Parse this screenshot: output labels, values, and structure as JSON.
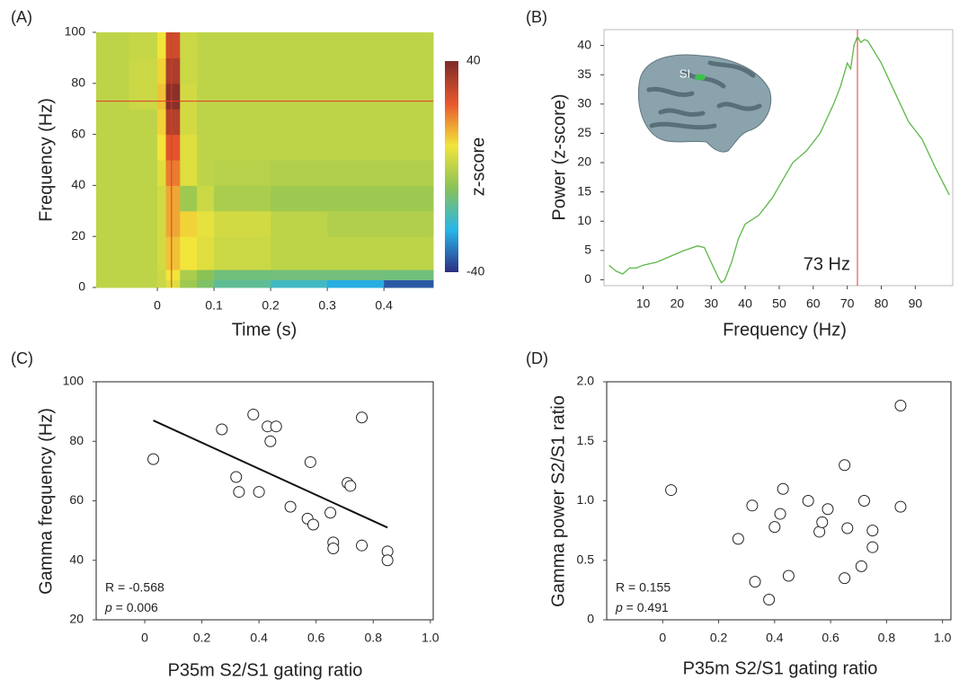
{
  "chart_data": [
    {
      "type": "heatmap",
      "panel_label": "(A)",
      "x_label": "Time (s)",
      "y_label": "Frequency (Hz)",
      "xlim": [
        -0.108,
        0.487
      ],
      "ylim": [
        0,
        100
      ],
      "xticks": [
        0,
        0.1,
        0.2,
        0.3,
        0.4
      ],
      "yticks": [
        0,
        20,
        40,
        60,
        80,
        100
      ],
      "x_edges": [
        -0.108,
        -0.05,
        0.0,
        0.015,
        0.04,
        0.07,
        0.1,
        0.2,
        0.3,
        0.4,
        0.487
      ],
      "y_edges": [
        0,
        3,
        7,
        20,
        30,
        40,
        50,
        60,
        70,
        80,
        90,
        100
      ],
      "z": [
        [
          0,
          0,
          2,
          5,
          -5,
          -10,
          -15,
          -20,
          -25,
          -35
        ],
        [
          0,
          0,
          2,
          8,
          -3,
          -8,
          -12,
          -12,
          -12,
          -12
        ],
        [
          0,
          0,
          3,
          12,
          8,
          5,
          2,
          0,
          0,
          0
        ],
        [
          0,
          0,
          3,
          15,
          10,
          6,
          3,
          0,
          -2,
          -2
        ],
        [
          0,
          0,
          3,
          15,
          -5,
          2,
          -3,
          -5,
          -5,
          -5
        ],
        [
          0,
          0,
          5,
          20,
          5,
          0,
          -1,
          -2,
          -2,
          -2
        ],
        [
          0,
          0,
          8,
          25,
          5,
          0,
          0,
          0,
          0,
          0
        ],
        [
          0,
          0,
          10,
          32,
          3,
          0,
          0,
          0,
          0,
          0
        ],
        [
          0,
          2,
          12,
          38,
          3,
          0,
          0,
          0,
          0,
          0
        ],
        [
          0,
          2,
          10,
          33,
          2,
          0,
          0,
          0,
          0,
          0
        ],
        [
          0,
          1,
          8,
          28,
          2,
          0,
          0,
          0,
          0,
          0
        ]
      ],
      "crosshair": {
        "x": 0.025,
        "y": 73,
        "color": "#e0392b"
      },
      "colormap": [
        "#2c2e83",
        "#27b6e9",
        "#8ac256",
        "#f2e53a",
        "#e8572c",
        "#7d2a2a"
      ],
      "colorbar": {
        "label": "z-score",
        "lim": [
          -40,
          40
        ],
        "ticks": [
          -40,
          40
        ]
      }
    },
    {
      "type": "line",
      "panel_label": "(B)",
      "x_label": "Frequency (Hz)",
      "y_label": "Power (z-score)",
      "xlim": [
        -1.5,
        101
      ],
      "ylim": [
        -1,
        42.7
      ],
      "xticks": [
        10,
        20,
        30,
        40,
        50,
        60,
        70,
        80,
        90
      ],
      "yticks": [
        0,
        5,
        10,
        15,
        20,
        25,
        30,
        35,
        40
      ],
      "x": [
        0,
        2,
        4,
        6,
        8,
        10,
        14,
        18,
        22,
        26,
        28,
        30,
        32,
        33,
        34,
        36,
        38,
        40,
        44,
        48,
        50,
        54,
        58,
        62,
        66,
        68,
        70,
        71,
        72,
        73,
        74,
        75,
        76,
        80,
        84,
        88,
        92,
        96,
        100
      ],
      "values": [
        2.5,
        1.5,
        1,
        2,
        2,
        2.5,
        3,
        4,
        5,
        5.8,
        5.5,
        3,
        0.5,
        -0.5,
        0,
        3,
        7,
        9.5,
        11,
        14,
        16,
        20,
        22,
        25,
        30,
        33,
        37,
        36,
        40,
        41.5,
        40.5,
        41,
        40.8,
        37,
        32,
        27,
        24,
        19,
        14.5
      ],
      "color": "#5cb848",
      "annotation": {
        "value": 73,
        "label": "73 Hz",
        "color": "#e0392b"
      },
      "inset_label": "SI"
    },
    {
      "type": "scatter",
      "panel_label": "(C)",
      "x_label": "P35m S2/S1 gating ratio",
      "y_label": "Gamma frequency (Hz)",
      "xlim": [
        -0.17,
        1.01
      ],
      "ylim": [
        20,
        100
      ],
      "xticks": [
        0,
        0.2,
        0.4,
        0.6,
        0.8,
        {
          "value": 1,
          "label": "1.0"
        }
      ],
      "yticks": [
        20,
        40,
        60,
        80,
        100
      ],
      "x": [
        0.03,
        0.27,
        0.32,
        0.33,
        0.38,
        0.4,
        0.43,
        0.44,
        0.46,
        0.51,
        0.57,
        0.58,
        0.59,
        0.65,
        0.66,
        0.66,
        0.71,
        0.72,
        0.76,
        0.76,
        0.85,
        0.85
      ],
      "y": [
        74,
        84,
        68,
        63,
        89,
        63,
        85,
        80,
        85,
        58,
        54,
        73,
        52,
        56,
        46,
        44,
        66,
        65,
        88,
        45,
        43,
        40
      ],
      "fit": {
        "x": [
          0.03,
          0.85
        ],
        "y": [
          87,
          51
        ]
      },
      "stat_r": "R = -0.568",
      "stat_p_symbol": "p",
      "stat_p": " = 0.006"
    },
    {
      "type": "scatter",
      "panel_label": "(D)",
      "x_label": "P35m S2/S1 gating ratio",
      "y_label": "Gamma power S2/S1 ratio",
      "xlim": [
        -0.2,
        1.03
      ],
      "ylim": [
        0,
        2
      ],
      "xticks": [
        0,
        0.2,
        0.4,
        0.6,
        0.8,
        {
          "value": 1,
          "label": "1.0"
        }
      ],
      "yticks": [
        0,
        0.5,
        {
          "value": 1,
          "label": "1.0"
        },
        1.5,
        {
          "value": 2,
          "label": "2.0"
        }
      ],
      "x": [
        0.03,
        0.27,
        0.32,
        0.33,
        0.38,
        0.4,
        0.42,
        0.43,
        0.45,
        0.52,
        0.56,
        0.57,
        0.59,
        0.65,
        0.65,
        0.66,
        0.71,
        0.72,
        0.75,
        0.75,
        0.85,
        0.85
      ],
      "y": [
        1.09,
        0.68,
        0.96,
        0.32,
        0.17,
        0.78,
        0.89,
        1.1,
        0.37,
        1.0,
        0.74,
        0.82,
        0.93,
        0.35,
        1.3,
        0.77,
        0.45,
        1.0,
        0.75,
        0.61,
        1.8,
        0.95
      ],
      "stat_r": "R = 0.155",
      "stat_p_symbol": "p",
      "stat_p": " = 0.491"
    }
  ]
}
